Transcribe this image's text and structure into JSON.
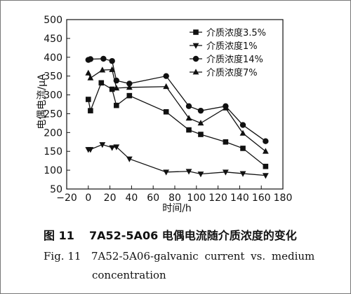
{
  "chart_data": {
    "type": "line",
    "xlabel": "时间/h",
    "ylabel": "电偶电流/μA",
    "xlim": [
      -20,
      180
    ],
    "ylim": [
      50,
      500
    ],
    "xticks": [
      "−20",
      "0",
      "20",
      "40",
      "60",
      "80",
      "100",
      "120",
      "140",
      "160",
      "180"
    ],
    "yticks": [
      "50",
      "100",
      "150",
      "200",
      "250",
      "300",
      "350",
      "400",
      "450",
      "500"
    ],
    "legend_position": "top-right",
    "series": [
      {
        "name": "介质浓度3.5%",
        "marker": "square",
        "points": [
          [
            0,
            288
          ],
          [
            2,
            258
          ],
          [
            12,
            332
          ],
          [
            22,
            315
          ],
          [
            26,
            272
          ],
          [
            38,
            298
          ],
          [
            72,
            255
          ],
          [
            93,
            207
          ],
          [
            104,
            195
          ],
          [
            127,
            175
          ],
          [
            143,
            158
          ],
          [
            164,
            110
          ]
        ]
      },
      {
        "name": "介质浓度1%",
        "marker": "triangle-down",
        "points": [
          [
            0,
            155
          ],
          [
            2,
            155
          ],
          [
            13,
            168
          ],
          [
            22,
            160
          ],
          [
            26,
            162
          ],
          [
            38,
            130
          ],
          [
            72,
            95
          ],
          [
            93,
            97
          ],
          [
            104,
            90
          ],
          [
            127,
            95
          ],
          [
            143,
            91
          ],
          [
            164,
            86
          ]
        ]
      },
      {
        "name": "介质浓度14%",
        "marker": "circle",
        "points": [
          [
            0,
            393
          ],
          [
            2,
            395
          ],
          [
            14,
            396
          ],
          [
            22,
            390
          ],
          [
            26,
            338
          ],
          [
            38,
            330
          ],
          [
            72,
            350
          ],
          [
            93,
            270
          ],
          [
            104,
            258
          ],
          [
            127,
            270
          ],
          [
            143,
            220
          ],
          [
            164,
            177
          ]
        ]
      },
      {
        "name": "介质浓度7%",
        "marker": "triangle-up",
        "points": [
          [
            0,
            358
          ],
          [
            2,
            345
          ],
          [
            13,
            366
          ],
          [
            22,
            367
          ],
          [
            26,
            318
          ],
          [
            38,
            320
          ],
          [
            72,
            322
          ],
          [
            93,
            238
          ],
          [
            104,
            225
          ],
          [
            127,
            265
          ],
          [
            143,
            198
          ],
          [
            164,
            150
          ]
        ]
      }
    ]
  },
  "caption": {
    "cn_label": "图 11",
    "cn_text": "7A52-5A06 电偶电流随介质浓度的变化",
    "en_label": "Fig. 11",
    "en_text_line1": "7A52-5A06-galvanic current vs. medium",
    "en_text_line2": "concentration"
  }
}
